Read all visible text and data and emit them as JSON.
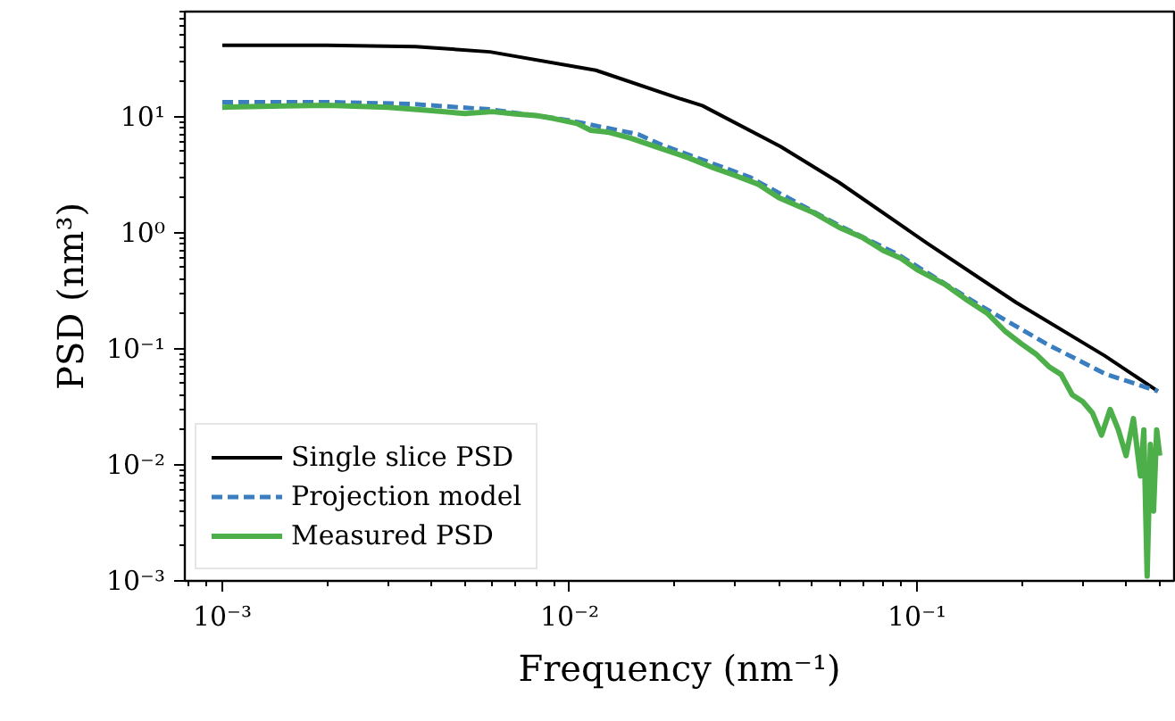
{
  "chart_data": {
    "type": "line",
    "xlabel": "Frequency (nm⁻¹)",
    "ylabel": "PSD (nm³)",
    "log": "xy",
    "grid": false,
    "legend": "bottom left",
    "marker": "none",
    "xlim": [
      0.00078,
      0.55
    ],
    "ylim": [
      0.001,
      80
    ],
    "xticks": [
      {
        "value": 0.001,
        "label": "10⁻³"
      },
      {
        "value": 0.01,
        "label": "10⁻²"
      },
      {
        "value": 0.1,
        "label": "10⁻¹"
      }
    ],
    "yticks": [
      {
        "value": 0.001,
        "label": "10⁻³"
      },
      {
        "value": 0.01,
        "label": "10⁻²"
      },
      {
        "value": 0.1,
        "label": "10⁻¹"
      },
      {
        "value": 1,
        "label": "10⁰"
      },
      {
        "value": 10,
        "label": "10¹"
      }
    ],
    "series": [
      {
        "name": "Single slice PSD",
        "color": "#000000",
        "line_style": "solid",
        "x": [
          0.001,
          0.002,
          0.0036,
          0.0059,
          0.0119,
          0.0207,
          0.0241,
          0.0405,
          0.0597,
          0.107,
          0.193,
          0.347,
          0.494
        ],
        "values": [
          41,
          41,
          40,
          36,
          25,
          14.3,
          12.4,
          5.5,
          2.7,
          0.81,
          0.25,
          0.087,
          0.043
        ]
      },
      {
        "name": "Projection model",
        "color": "#3a7ebf",
        "line_style": "dashed",
        "x": [
          0.001,
          0.002,
          0.0035,
          0.0059,
          0.0099,
          0.0158,
          0.0184,
          0.033,
          0.0597,
          0.088,
          0.147,
          0.236,
          0.347,
          0.494
        ],
        "values": [
          13.3,
          13.3,
          12.8,
          11.5,
          9.3,
          7.0,
          5.7,
          3.0,
          1.15,
          0.65,
          0.25,
          0.11,
          0.061,
          0.043
        ]
      },
      {
        "name": "Measured PSD",
        "color": "#4daf4a",
        "line_style": "solid",
        "x": [
          0.001,
          0.0015,
          0.002,
          0.003,
          0.004,
          0.005,
          0.006,
          0.007,
          0.008,
          0.009,
          0.0105,
          0.0115,
          0.013,
          0.015,
          0.018,
          0.022,
          0.026,
          0.03,
          0.035,
          0.04,
          0.05,
          0.06,
          0.07,
          0.08,
          0.09,
          0.1,
          0.12,
          0.14,
          0.16,
          0.18,
          0.2,
          0.22,
          0.24,
          0.26,
          0.28,
          0.3,
          0.32,
          0.34,
          0.36,
          0.38,
          0.4,
          0.42,
          0.44,
          0.45,
          0.46,
          0.47,
          0.48,
          0.49,
          0.5
        ],
        "values": [
          12,
          12.3,
          12.5,
          12,
          11.2,
          10.6,
          11,
          10.5,
          10.2,
          9.6,
          8.7,
          7.6,
          7.3,
          6.5,
          5.4,
          4.4,
          3.6,
          3.1,
          2.6,
          2.0,
          1.5,
          1.1,
          0.9,
          0.7,
          0.6,
          0.48,
          0.36,
          0.26,
          0.2,
          0.14,
          0.11,
          0.09,
          0.07,
          0.06,
          0.04,
          0.035,
          0.028,
          0.018,
          0.03,
          0.02,
          0.012,
          0.025,
          0.008,
          0.02,
          0.0011,
          0.015,
          0.004,
          0.02,
          0.012
        ]
      }
    ]
  }
}
